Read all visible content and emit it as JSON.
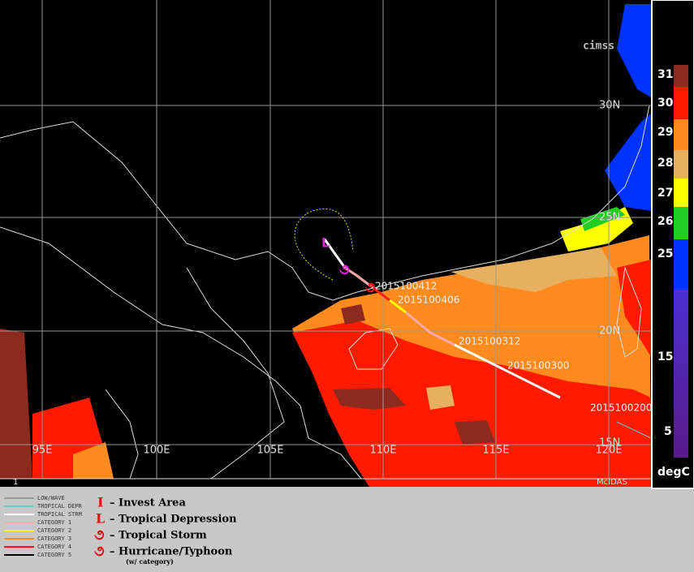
{
  "map": {
    "lat_labels": [
      "30N",
      "25N",
      "20N",
      "15N"
    ],
    "lon_labels": [
      "95E",
      "100E",
      "105E",
      "110E",
      "115E",
      "120E"
    ],
    "track_labels": [
      "2015100412",
      "2015100406",
      "2015100312",
      "2015100300",
      "2015100200"
    ],
    "frame_label": "1",
    "software_label": "McIDAS",
    "logo": "cimss"
  },
  "colorbar": {
    "unit": "degC",
    "labels": [
      31,
      30,
      29,
      28,
      27,
      26,
      25,
      15,
      5
    ]
  },
  "legend": {
    "track_types": [
      "LOW/WAVE",
      "TROPICAL DEPR",
      "TROPICAL STRM",
      "CATEGORY 1",
      "CATEGORY 2",
      "CATEGORY 3",
      "CATEGORY 4",
      "CATEGORY 5"
    ],
    "symbols": [
      "I",
      "L"
    ],
    "symbol_texts": [
      "– Invest Area",
      "– Tropical Depression",
      "– Tropical Storm",
      "– Hurricane/Typhoon"
    ],
    "note": "(w/ category)"
  }
}
